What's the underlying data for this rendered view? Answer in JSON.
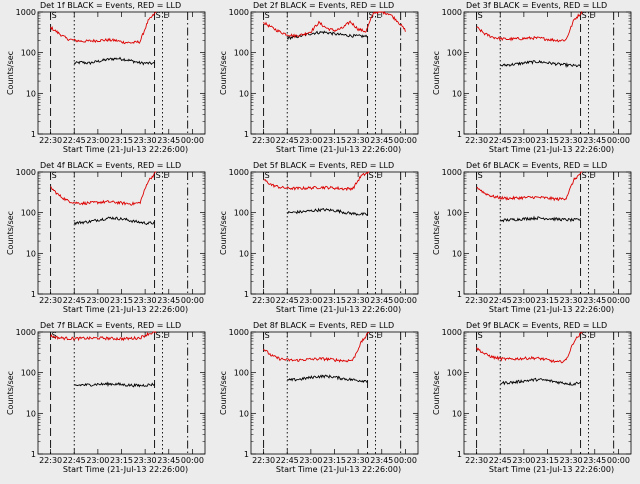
{
  "colors": {
    "events": "#000000",
    "lld": "#dd0000",
    "frame": "#000000",
    "background": "#ececec"
  },
  "chart_data": [
    {
      "type": "line",
      "title": "Det 1f BLACK = Events, RED = LLD",
      "xlabel": "Start Time (21-Jul-13 22:26:00)",
      "ylabel": "Counts/sec",
      "yscale": "log",
      "ylim": [
        1,
        1000
      ],
      "x_tick_labels": [
        "22:30",
        "22:45",
        "23:00",
        "23:15",
        "23:30",
        "23:45",
        "00:00"
      ],
      "y_tick_labels": [
        "1",
        "10",
        "100",
        "1000"
      ],
      "markers": [
        {
          "label": "S",
          "x": "22:30",
          "style": "dashed"
        },
        {
          "label": "",
          "x": "22:45",
          "style": "dotted"
        },
        {
          "label": "S",
          "x": "23:36",
          "style": "dashed"
        },
        {
          "label": "E",
          "x": "23:41",
          "style": "dotted"
        },
        {
          "label": "",
          "x": "23:57",
          "style": "dashdot"
        }
      ],
      "series": [
        {
          "name": "Events",
          "color": "#000000",
          "x_start": "22:45",
          "x_end": "23:36",
          "values": [
            55,
            58,
            55,
            60,
            65,
            70,
            72,
            68,
            62,
            56,
            55,
            54
          ]
        },
        {
          "name": "LLD",
          "color": "#dd0000",
          "x_start": "22:30",
          "x_end": "23:37",
          "values": [
            420,
            300,
            220,
            200,
            190,
            195,
            200,
            205,
            200,
            180,
            175,
            185,
            600,
            1000
          ]
        }
      ]
    },
    {
      "type": "line",
      "title": "Det 2f BLACK = Events, RED = LLD",
      "xlabel": "Start Time (21-Jul-13 22:26:00)",
      "ylabel": "Counts/sec",
      "yscale": "log",
      "ylim": [
        1,
        1000
      ],
      "x_tick_labels": [
        "22:30",
        "22:45",
        "23:00",
        "23:15",
        "23:30",
        "23:45",
        "00:00"
      ],
      "y_tick_labels": [
        "1",
        "10",
        "100",
        "1000"
      ],
      "markers": [
        {
          "label": "S",
          "x": "22:30",
          "style": "dashed"
        },
        {
          "label": "",
          "x": "22:45",
          "style": "dotted"
        },
        {
          "label": "S",
          "x": "23:36",
          "style": "dashed"
        },
        {
          "label": "E",
          "x": "23:41",
          "style": "dotted"
        },
        {
          "label": "",
          "x": "23:57",
          "style": "dashdot"
        }
      ],
      "series": [
        {
          "name": "Events",
          "color": "#000000",
          "x_start": "22:45",
          "x_end": "23:36",
          "values": [
            230,
            240,
            260,
            290,
            310,
            320,
            300,
            280,
            270,
            260,
            255,
            250
          ]
        },
        {
          "name": "LLD",
          "color": "#dd0000",
          "x_start": "22:30",
          "x_end": "00:00",
          "values": [
            550,
            420,
            330,
            280,
            260,
            280,
            330,
            550,
            400,
            350,
            400,
            580,
            380,
            330,
            1000,
            1000,
            900,
            600,
            350
          ]
        }
      ]
    },
    {
      "type": "line",
      "title": "Det 3f BLACK = Events, RED = LLD",
      "xlabel": "Start Time (21-Jul-13 22:26:00)",
      "ylabel": "Counts/sec",
      "yscale": "log",
      "ylim": [
        1,
        1000
      ],
      "x_tick_labels": [
        "22:30",
        "22:45",
        "23:00",
        "23:15",
        "23:30",
        "23:45",
        "00:00"
      ],
      "y_tick_labels": [
        "1",
        "10",
        "100",
        "1000"
      ],
      "markers": [
        {
          "label": "S",
          "x": "22:30",
          "style": "dashed"
        },
        {
          "label": "",
          "x": "22:45",
          "style": "dotted"
        },
        {
          "label": "S",
          "x": "23:36",
          "style": "dashed"
        },
        {
          "label": "E",
          "x": "23:41",
          "style": "dotted"
        },
        {
          "label": "",
          "x": "23:57",
          "style": "dashdot"
        }
      ],
      "series": [
        {
          "name": "Events",
          "color": "#000000",
          "x_start": "22:45",
          "x_end": "23:36",
          "values": [
            48,
            50,
            52,
            55,
            58,
            60,
            58,
            55,
            52,
            50,
            48,
            47
          ]
        },
        {
          "name": "LLD",
          "color": "#dd0000",
          "x_start": "22:30",
          "x_end": "23:37",
          "values": [
            420,
            290,
            240,
            220,
            215,
            220,
            225,
            230,
            225,
            210,
            200,
            205,
            650,
            1000
          ]
        }
      ]
    },
    {
      "type": "line",
      "title": "Det 4f BLACK = Events, RED = LLD",
      "xlabel": "Start Time (21-Jul-13 22:26:00)",
      "ylabel": "Counts/sec",
      "yscale": "log",
      "ylim": [
        1,
        1000
      ],
      "x_tick_labels": [
        "22:30",
        "22:45",
        "23:00",
        "23:15",
        "23:30",
        "23:45",
        "00:00"
      ],
      "y_tick_labels": [
        "1",
        "10",
        "100",
        "1000"
      ],
      "markers": [
        {
          "label": "S",
          "x": "22:30",
          "style": "dashed"
        },
        {
          "label": "",
          "x": "22:45",
          "style": "dotted"
        },
        {
          "label": "S",
          "x": "23:36",
          "style": "dashed"
        },
        {
          "label": "E",
          "x": "23:41",
          "style": "dotted"
        },
        {
          "label": "",
          "x": "23:57",
          "style": "dashdot"
        }
      ],
      "series": [
        {
          "name": "Events",
          "color": "#000000",
          "x_start": "22:45",
          "x_end": "23:36",
          "values": [
            55,
            58,
            60,
            65,
            70,
            75,
            72,
            68,
            62,
            58,
            55,
            56
          ]
        },
        {
          "name": "LLD",
          "color": "#dd0000",
          "x_start": "22:30",
          "x_end": "23:37",
          "values": [
            420,
            270,
            200,
            175,
            170,
            175,
            180,
            185,
            180,
            170,
            165,
            175,
            600,
            1000
          ]
        }
      ]
    },
    {
      "type": "line",
      "title": "Det 5f BLACK = Events, RED = LLD",
      "xlabel": "Start Time (21-Jul-13 22:26:00)",
      "ylabel": "Counts/sec",
      "yscale": "log",
      "ylim": [
        1,
        1000
      ],
      "x_tick_labels": [
        "22:30",
        "22:45",
        "23:00",
        "23:15",
        "23:30",
        "23:45",
        "00:00"
      ],
      "y_tick_labels": [
        "1",
        "10",
        "100",
        "1000"
      ],
      "markers": [
        {
          "label": "S",
          "x": "22:30",
          "style": "dashed"
        },
        {
          "label": "",
          "x": "22:45",
          "style": "dotted"
        },
        {
          "label": "S",
          "x": "23:36",
          "style": "dashed"
        },
        {
          "label": "E",
          "x": "23:41",
          "style": "dotted"
        },
        {
          "label": "",
          "x": "23:57",
          "style": "dashdot"
        }
      ],
      "series": [
        {
          "name": "Events",
          "color": "#000000",
          "x_start": "22:45",
          "x_end": "23:36",
          "values": [
            100,
            102,
            105,
            110,
            115,
            118,
            115,
            110,
            100,
            95,
            92,
            90
          ]
        },
        {
          "name": "LLD",
          "color": "#dd0000",
          "x_start": "22:30",
          "x_end": "23:37",
          "values": [
            650,
            480,
            420,
            400,
            395,
            400,
            410,
            420,
            415,
            400,
            385,
            395,
            800,
            1000
          ]
        }
      ]
    },
    {
      "type": "line",
      "title": "Det 6f BLACK = Events, RED = LLD",
      "xlabel": "Start Time (21-Jul-13 22:26:00)",
      "ylabel": "Counts/sec",
      "yscale": "log",
      "ylim": [
        1,
        1000
      ],
      "x_tick_labels": [
        "22:30",
        "22:45",
        "23:00",
        "23:15",
        "23:30",
        "23:45",
        "00:00"
      ],
      "y_tick_labels": [
        "1",
        "10",
        "100",
        "1000"
      ],
      "markers": [
        {
          "label": "S",
          "x": "22:30",
          "style": "dashed"
        },
        {
          "label": "",
          "x": "22:45",
          "style": "dotted"
        },
        {
          "label": "S",
          "x": "23:36",
          "style": "dashed"
        },
        {
          "label": "E",
          "x": "23:41",
          "style": "dotted"
        },
        {
          "label": "",
          "x": "23:57",
          "style": "dashdot"
        }
      ],
      "series": [
        {
          "name": "Events",
          "color": "#000000",
          "x_start": "22:45",
          "x_end": "23:36",
          "values": [
            65,
            66,
            68,
            70,
            72,
            74,
            73,
            71,
            69,
            67,
            66,
            68
          ]
        },
        {
          "name": "LLD",
          "color": "#dd0000",
          "x_start": "22:30",
          "x_end": "23:37",
          "values": [
            430,
            300,
            250,
            230,
            225,
            230,
            235,
            240,
            235,
            225,
            215,
            225,
            650,
            1000
          ]
        }
      ]
    },
    {
      "type": "line",
      "title": "Det 7f BLACK = Events, RED = LLD",
      "xlabel": "Start Time (21-Jul-13 22:26:00)",
      "ylabel": "Counts/sec",
      "yscale": "log",
      "ylim": [
        1,
        1000
      ],
      "x_tick_labels": [
        "22:30",
        "22:45",
        "23:00",
        "23:15",
        "23:30",
        "23:45",
        "00:00"
      ],
      "y_tick_labels": [
        "1",
        "10",
        "100",
        "1000"
      ],
      "markers": [
        {
          "label": "S",
          "x": "22:30",
          "style": "dashed"
        },
        {
          "label": "",
          "x": "22:45",
          "style": "dotted"
        },
        {
          "label": "S",
          "x": "23:36",
          "style": "dashed"
        },
        {
          "label": "E",
          "x": "23:41",
          "style": "dotted"
        },
        {
          "label": "",
          "x": "23:57",
          "style": "dashdot"
        }
      ],
      "series": [
        {
          "name": "Events",
          "color": "#000000",
          "x_start": "22:45",
          "x_end": "23:36",
          "values": [
            48,
            50,
            50,
            52,
            52,
            53,
            52,
            50,
            49,
            48,
            50,
            52
          ]
        },
        {
          "name": "LLD",
          "color": "#dd0000",
          "x_start": "22:30",
          "x_end": "23:37",
          "values": [
            800,
            720,
            700,
            690,
            700,
            700,
            710,
            700,
            690,
            680,
            700,
            720,
            900,
            1000
          ]
        }
      ]
    },
    {
      "type": "line",
      "title": "Det 8f BLACK = Events, RED = LLD",
      "xlabel": "Start Time (21-Jul-13 22:26:00)",
      "ylabel": "Counts/sec",
      "yscale": "log",
      "ylim": [
        1,
        1000
      ],
      "x_tick_labels": [
        "22:30",
        "22:45",
        "23:00",
        "23:15",
        "23:30",
        "23:45",
        "00:00"
      ],
      "y_tick_labels": [
        "1",
        "10",
        "100",
        "1000"
      ],
      "markers": [
        {
          "label": "S",
          "x": "22:30",
          "style": "dashed"
        },
        {
          "label": "",
          "x": "22:45",
          "style": "dotted"
        },
        {
          "label": "S",
          "x": "23:36",
          "style": "dashed"
        },
        {
          "label": "E",
          "x": "23:41",
          "style": "dotted"
        },
        {
          "label": "",
          "x": "23:57",
          "style": "dashdot"
        }
      ],
      "series": [
        {
          "name": "Events",
          "color": "#000000",
          "x_start": "22:45",
          "x_end": "23:36",
          "values": [
            65,
            67,
            70,
            75,
            80,
            82,
            80,
            75,
            70,
            67,
            64,
            63
          ]
        },
        {
          "name": "LLD",
          "color": "#dd0000",
          "x_start": "22:30",
          "x_end": "23:37",
          "values": [
            380,
            260,
            220,
            205,
            200,
            210,
            215,
            220,
            215,
            205,
            195,
            205,
            550,
            1000
          ]
        }
      ]
    },
    {
      "type": "line",
      "title": "Det 9f BLACK = Events, RED = LLD",
      "xlabel": "Start Time (21-Jul-13 22:26:00)",
      "ylabel": "Counts/sec",
      "yscale": "log",
      "ylim": [
        1,
        1000
      ],
      "x_tick_labels": [
        "22:30",
        "22:45",
        "23:00",
        "23:15",
        "23:30",
        "23:45",
        "00:00"
      ],
      "y_tick_labels": [
        "1",
        "10",
        "100",
        "1000"
      ],
      "markers": [
        {
          "label": "S",
          "x": "22:30",
          "style": "dashed"
        },
        {
          "label": "",
          "x": "22:45",
          "style": "dotted"
        },
        {
          "label": "S",
          "x": "23:36",
          "style": "dashed"
        },
        {
          "label": "E",
          "x": "23:41",
          "style": "dotted"
        },
        {
          "label": "",
          "x": "23:57",
          "style": "dashdot"
        }
      ],
      "series": [
        {
          "name": "Events",
          "color": "#000000",
          "x_start": "22:45",
          "x_end": "23:36",
          "values": [
            55,
            57,
            58,
            62,
            65,
            68,
            66,
            62,
            58,
            55,
            52,
            60
          ]
        },
        {
          "name": "LLD",
          "color": "#dd0000",
          "x_start": "22:30",
          "x_end": "23:37",
          "values": [
            400,
            290,
            240,
            220,
            215,
            220,
            225,
            230,
            220,
            200,
            180,
            200,
            600,
            1000
          ]
        }
      ]
    }
  ]
}
